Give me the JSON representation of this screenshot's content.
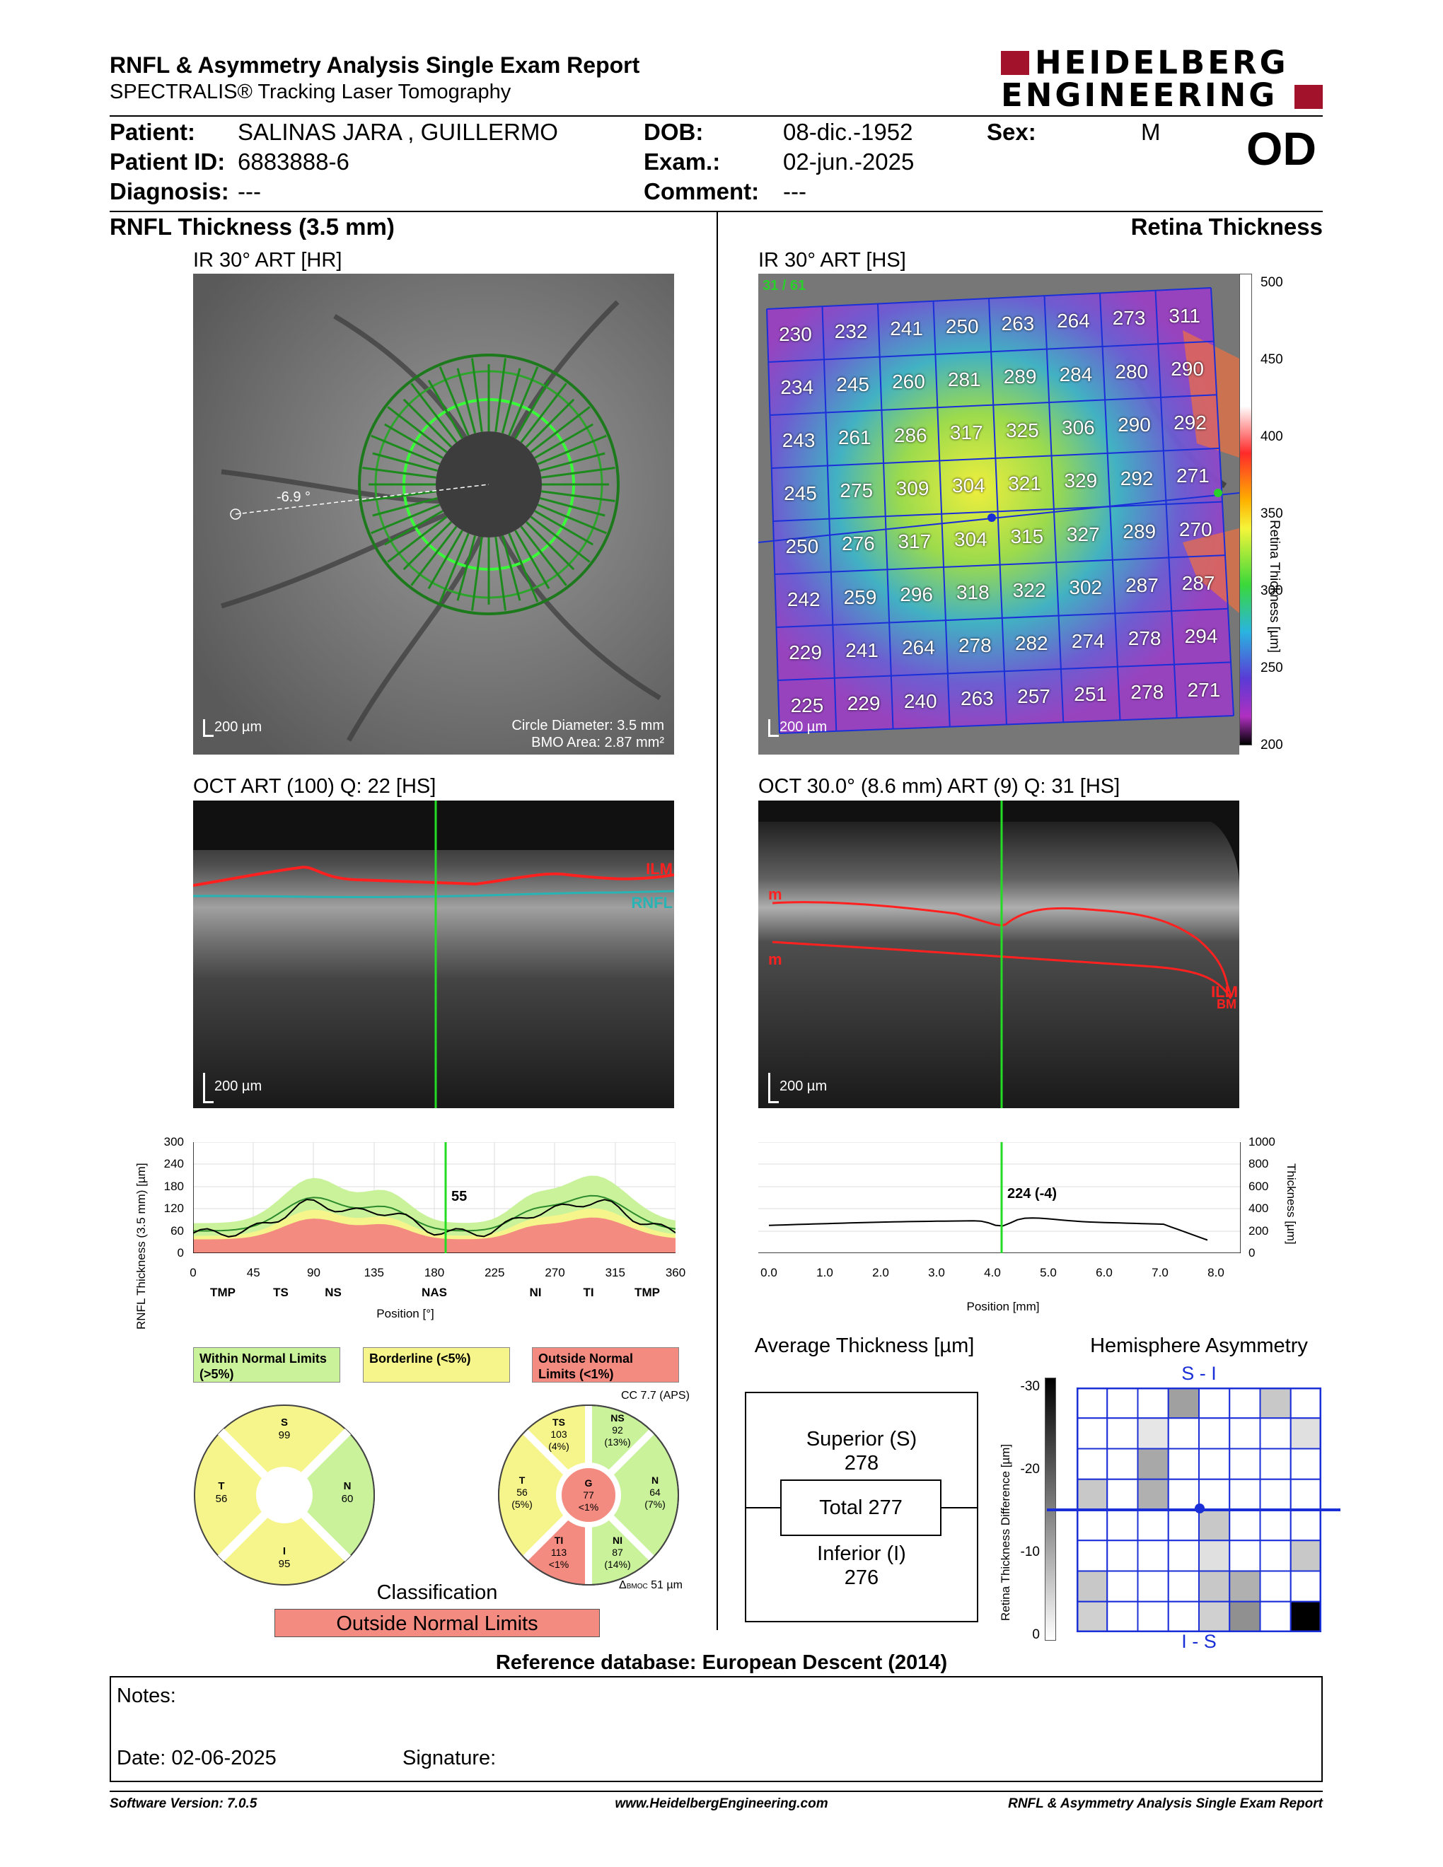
{
  "header": {
    "title": "RNFL & Asymmetry Analysis Single Exam Report",
    "subtitle": "SPECTRALIS® Tracking Laser Tomography",
    "logo_line1": "HEIDELBERG",
    "logo_line2": "ENGINEERING",
    "eye": "OD"
  },
  "patient": {
    "patient_label": "Patient:",
    "patient_value": "SALINAS JARA , GUILLERMO",
    "id_label": "Patient ID:",
    "id_value": "6883888-6",
    "diag_label": "Diagnosis:",
    "diag_value": "---",
    "dob_label": "DOB:",
    "dob_value": "08-dic.-1952",
    "exam_label": "Exam.:",
    "exam_value": "02-jun.-2025",
    "comment_label": "Comment:",
    "comment_value": "---",
    "sex_label": "Sex:",
    "sex_value": "M"
  },
  "left": {
    "section_title": "RNFL Thickness (3.5 mm)",
    "ir_label": "IR 30° ART [HR]",
    "ir_scale": "200 µm",
    "ir_angle": "-6.9 °",
    "circle_diameter": "Circle Diameter: 3.5 mm",
    "bmo_area": "BMO Area: 2.87 mm²",
    "oct_label": "OCT ART (100) Q: 22 [HS]",
    "oct_scale": "200 µm",
    "oct_ilm": "ILM",
    "oct_rnfl": "RNFL",
    "graph": {
      "ylabel": "RNFL Thickness (3.5 mm) [µm]",
      "xlabel": "Position [°]",
      "yticks": [
        "300",
        "240",
        "180",
        "120",
        "60",
        "0"
      ],
      "xticks": [
        "0",
        "45",
        "90",
        "135",
        "180",
        "225",
        "270",
        "315",
        "360"
      ],
      "sectors": [
        "TMP",
        "TS",
        "NS",
        "NAS",
        "NI",
        "TI",
        "TMP"
      ],
      "cursor_value": "55"
    }
  },
  "right": {
    "section_title": "Retina Thickness",
    "ir_label": "IR 30° ART [HS]",
    "ir_scale": "200 µm",
    "ir_counter": "31 / 61",
    "colorbar_title": "Retina Thickness [µm]",
    "colorbar_ticks": [
      "500",
      "450",
      "400",
      "350",
      "300",
      "250",
      "200"
    ],
    "grid": [
      [
        "230",
        "232",
        "241",
        "250",
        "263",
        "264",
        "273",
        "311"
      ],
      [
        "234",
        "245",
        "260",
        "281",
        "289",
        "284",
        "280",
        "290"
      ],
      [
        "243",
        "261",
        "286",
        "317",
        "325",
        "306",
        "290",
        "292"
      ],
      [
        "245",
        "275",
        "309",
        "304",
        "321",
        "329",
        "292",
        "271"
      ],
      [
        "250",
        "276",
        "317",
        "304",
        "315",
        "327",
        "289",
        "270"
      ],
      [
        "242",
        "259",
        "296",
        "318",
        "322",
        "302",
        "287",
        "287"
      ],
      [
        "229",
        "241",
        "264",
        "278",
        "282",
        "274",
        "278",
        "294"
      ],
      [
        "225",
        "229",
        "240",
        "263",
        "257",
        "251",
        "278",
        "271"
      ]
    ],
    "oct_label": "OCT 30.0° (8.6 mm) ART (9) Q: 31 [HS]",
    "oct_scale": "200 µm",
    "oct_ilm": "ILM",
    "oct_bm": "BM",
    "oct_m1": "m",
    "oct_m2": "m",
    "graph": {
      "ylabel": "Thickness [µm]",
      "xlabel": "Position [mm]",
      "yticks": [
        "1000",
        "800",
        "600",
        "400",
        "200",
        "0"
      ],
      "xticks": [
        "0.0",
        "1.0",
        "2.0",
        "3.0",
        "4.0",
        "5.0",
        "6.0",
        "7.0",
        "8.0"
      ],
      "cursor_value": "224 (-4)"
    }
  },
  "legend": {
    "within": "Within Normal Limits (>5%)",
    "borderline": "Borderline (<5%)",
    "outside": "Outside Normal Limits (<1%)",
    "cc": "CC 7.7 (APS)"
  },
  "pie1": {
    "S": {
      "k": "S",
      "v": "99"
    },
    "T": {
      "k": "T",
      "v": "56"
    },
    "N": {
      "k": "N",
      "v": "60"
    },
    "I": {
      "k": "I",
      "v": "95"
    }
  },
  "pie2": {
    "TS": {
      "k": "TS",
      "v": "103",
      "p": "(4%)"
    },
    "NS": {
      "k": "NS",
      "v": "92",
      "p": "(13%)"
    },
    "T": {
      "k": "T",
      "v": "56",
      "p": "(5%)"
    },
    "G": {
      "k": "G",
      "v": "77",
      "p": "<1%"
    },
    "N": {
      "k": "N",
      "v": "64",
      "p": "(7%)"
    },
    "TI": {
      "k": "TI",
      "v": "113",
      "p": "<1%"
    },
    "NI": {
      "k": "NI",
      "v": "87",
      "p": "(14%)"
    },
    "bmoc_sym": "Δ",
    "bmoc_sub": "BMOC",
    "bmoc_val": "51 µm"
  },
  "classification": {
    "label": "Classification",
    "value": "Outside Normal Limits"
  },
  "avg": {
    "title": "Average Thickness [µm]",
    "superior_label": "Superior (S)",
    "superior_value": "278",
    "total": "Total 277",
    "inferior_label": "Inferior (I)",
    "inferior_value": "276"
  },
  "asym": {
    "title": "Hemisphere Asymmetry",
    "top": "S - I",
    "bottom": "I - S",
    "ylabel": "Retina Thickness Difference [µm]",
    "yticks": [
      "-30",
      "-20",
      "-10",
      "0"
    ]
  },
  "reference": "Reference database: European Descent (2014)",
  "notes": {
    "label": "Notes:",
    "date": "Date: 02-06-2025",
    "signature": "Signature:"
  },
  "footer": {
    "software": "Software Version: 7.0.5",
    "url": "www.HeidelbergEngineering.com",
    "report": "RNFL & Asymmetry Analysis Single Exam Report"
  },
  "colors": {
    "within": "#c9f29b",
    "borderline": "#f6f58c",
    "outside": "#f48b80",
    "blue_grid": "#1a2fd8",
    "red_logo": "#a3122b"
  }
}
